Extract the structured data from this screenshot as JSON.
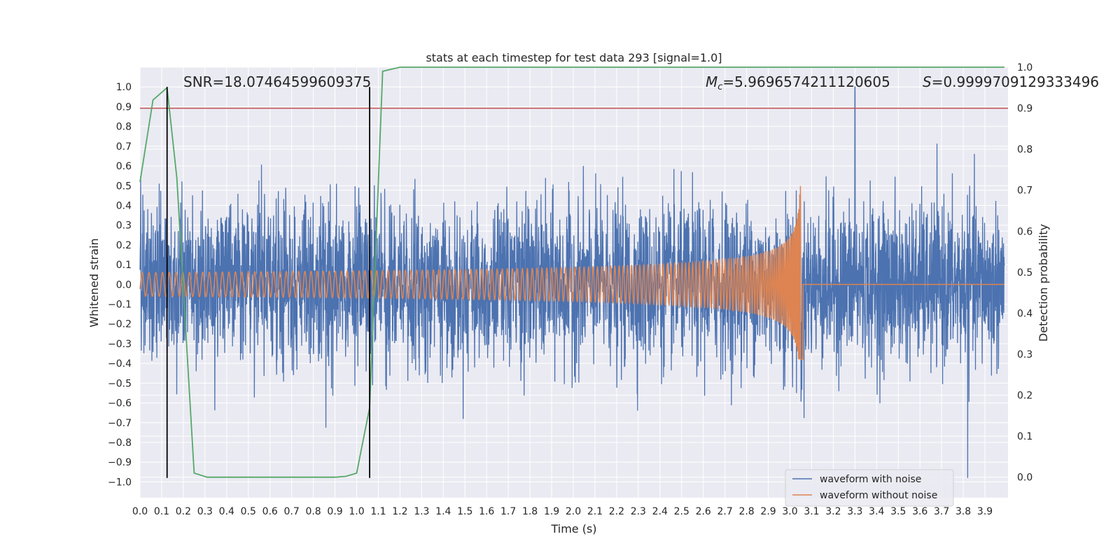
{
  "chart_data": {
    "type": "line",
    "title": "stats at each timestep for test data 293 [signal=1.0]",
    "xlabel": "Time (s)",
    "ylabel": "Whitened strain",
    "y2label": "Detection probability",
    "xlim": [
      0.0,
      4.0
    ],
    "ylim": [
      -1.08,
      1.1
    ],
    "y2lim": [
      -0.05,
      1.0
    ],
    "x_ticks": [
      "0.0",
      "0.1",
      "0.2",
      "0.3",
      "0.4",
      "0.5",
      "0.6",
      "0.7",
      "0.8",
      "0.9",
      "1.0",
      "1.1",
      "1.2",
      "1.3",
      "1.4",
      "1.5",
      "1.6",
      "1.7",
      "1.8",
      "1.9",
      "2.0",
      "2.1",
      "2.2",
      "2.3",
      "2.4",
      "2.5",
      "2.6",
      "2.7",
      "2.8",
      "2.9",
      "3.0",
      "3.1",
      "3.2",
      "3.3",
      "3.4",
      "3.5",
      "3.6",
      "3.7",
      "3.8",
      "3.9"
    ],
    "y_ticks": [
      "1.0",
      "0.9",
      "0.8",
      "0.7",
      "0.6",
      "0.5",
      "0.4",
      "0.3",
      "0.2",
      "0.1",
      "0.0",
      "−0.1",
      "−0.2",
      "−0.3",
      "−0.4",
      "−0.5",
      "−0.6",
      "−0.7",
      "−0.8",
      "−0.9",
      "−1.0"
    ],
    "y2_ticks": [
      "1.0",
      "0.9",
      "0.8",
      "0.7",
      "0.6",
      "0.5",
      "0.4",
      "0.3",
      "0.2",
      "0.1",
      "0.0"
    ],
    "grid": true,
    "legend_position": "lower-right",
    "annotations": {
      "snr": "SNR=18.07464599609375",
      "mc_symbol": "M",
      "mc_sub": "c",
      "mc_value": "=5.9696574211120605",
      "s_symbol": "S",
      "s_value": "=0.9999709129333496"
    },
    "series": [
      {
        "name": "waveform with noise",
        "color": "#4c72b0",
        "description_stats": {
          "typical_peak": 0.5,
          "max": 1.0,
          "min": -0.98,
          "max_at": 3.3,
          "min_at": 3.82
        }
      },
      {
        "name": "waveform without noise",
        "color": "#dd8452",
        "chirp": {
          "start_amplitude": 0.06,
          "merger_time": 3.05,
          "peak_amplitude": 0.6,
          "peak_negative": -0.38
        }
      },
      {
        "name": "",
        "axis": "right",
        "color": "#55a868",
        "x": [
          0.0,
          0.06,
          0.125,
          0.17,
          0.25,
          0.31,
          0.5,
          0.7,
          0.9,
          0.95,
          1.0,
          1.06,
          1.12,
          1.2,
          1.5,
          2.0,
          2.5,
          3.0,
          3.5,
          3.99
        ],
        "values": [
          0.72,
          0.92,
          0.95,
          0.73,
          0.01,
          0.0,
          0.0,
          0.0,
          0.0,
          0.002,
          0.01,
          0.17,
          0.99,
          1.0,
          1.0,
          1.0,
          1.0,
          1.0,
          1.0,
          1.0
        ]
      }
    ],
    "threshold_line": {
      "axis": "right",
      "y": 0.9,
      "color": "#c44e52"
    },
    "vertical_lines": {
      "x": [
        0.125,
        1.06
      ],
      "color": "#000000"
    }
  }
}
